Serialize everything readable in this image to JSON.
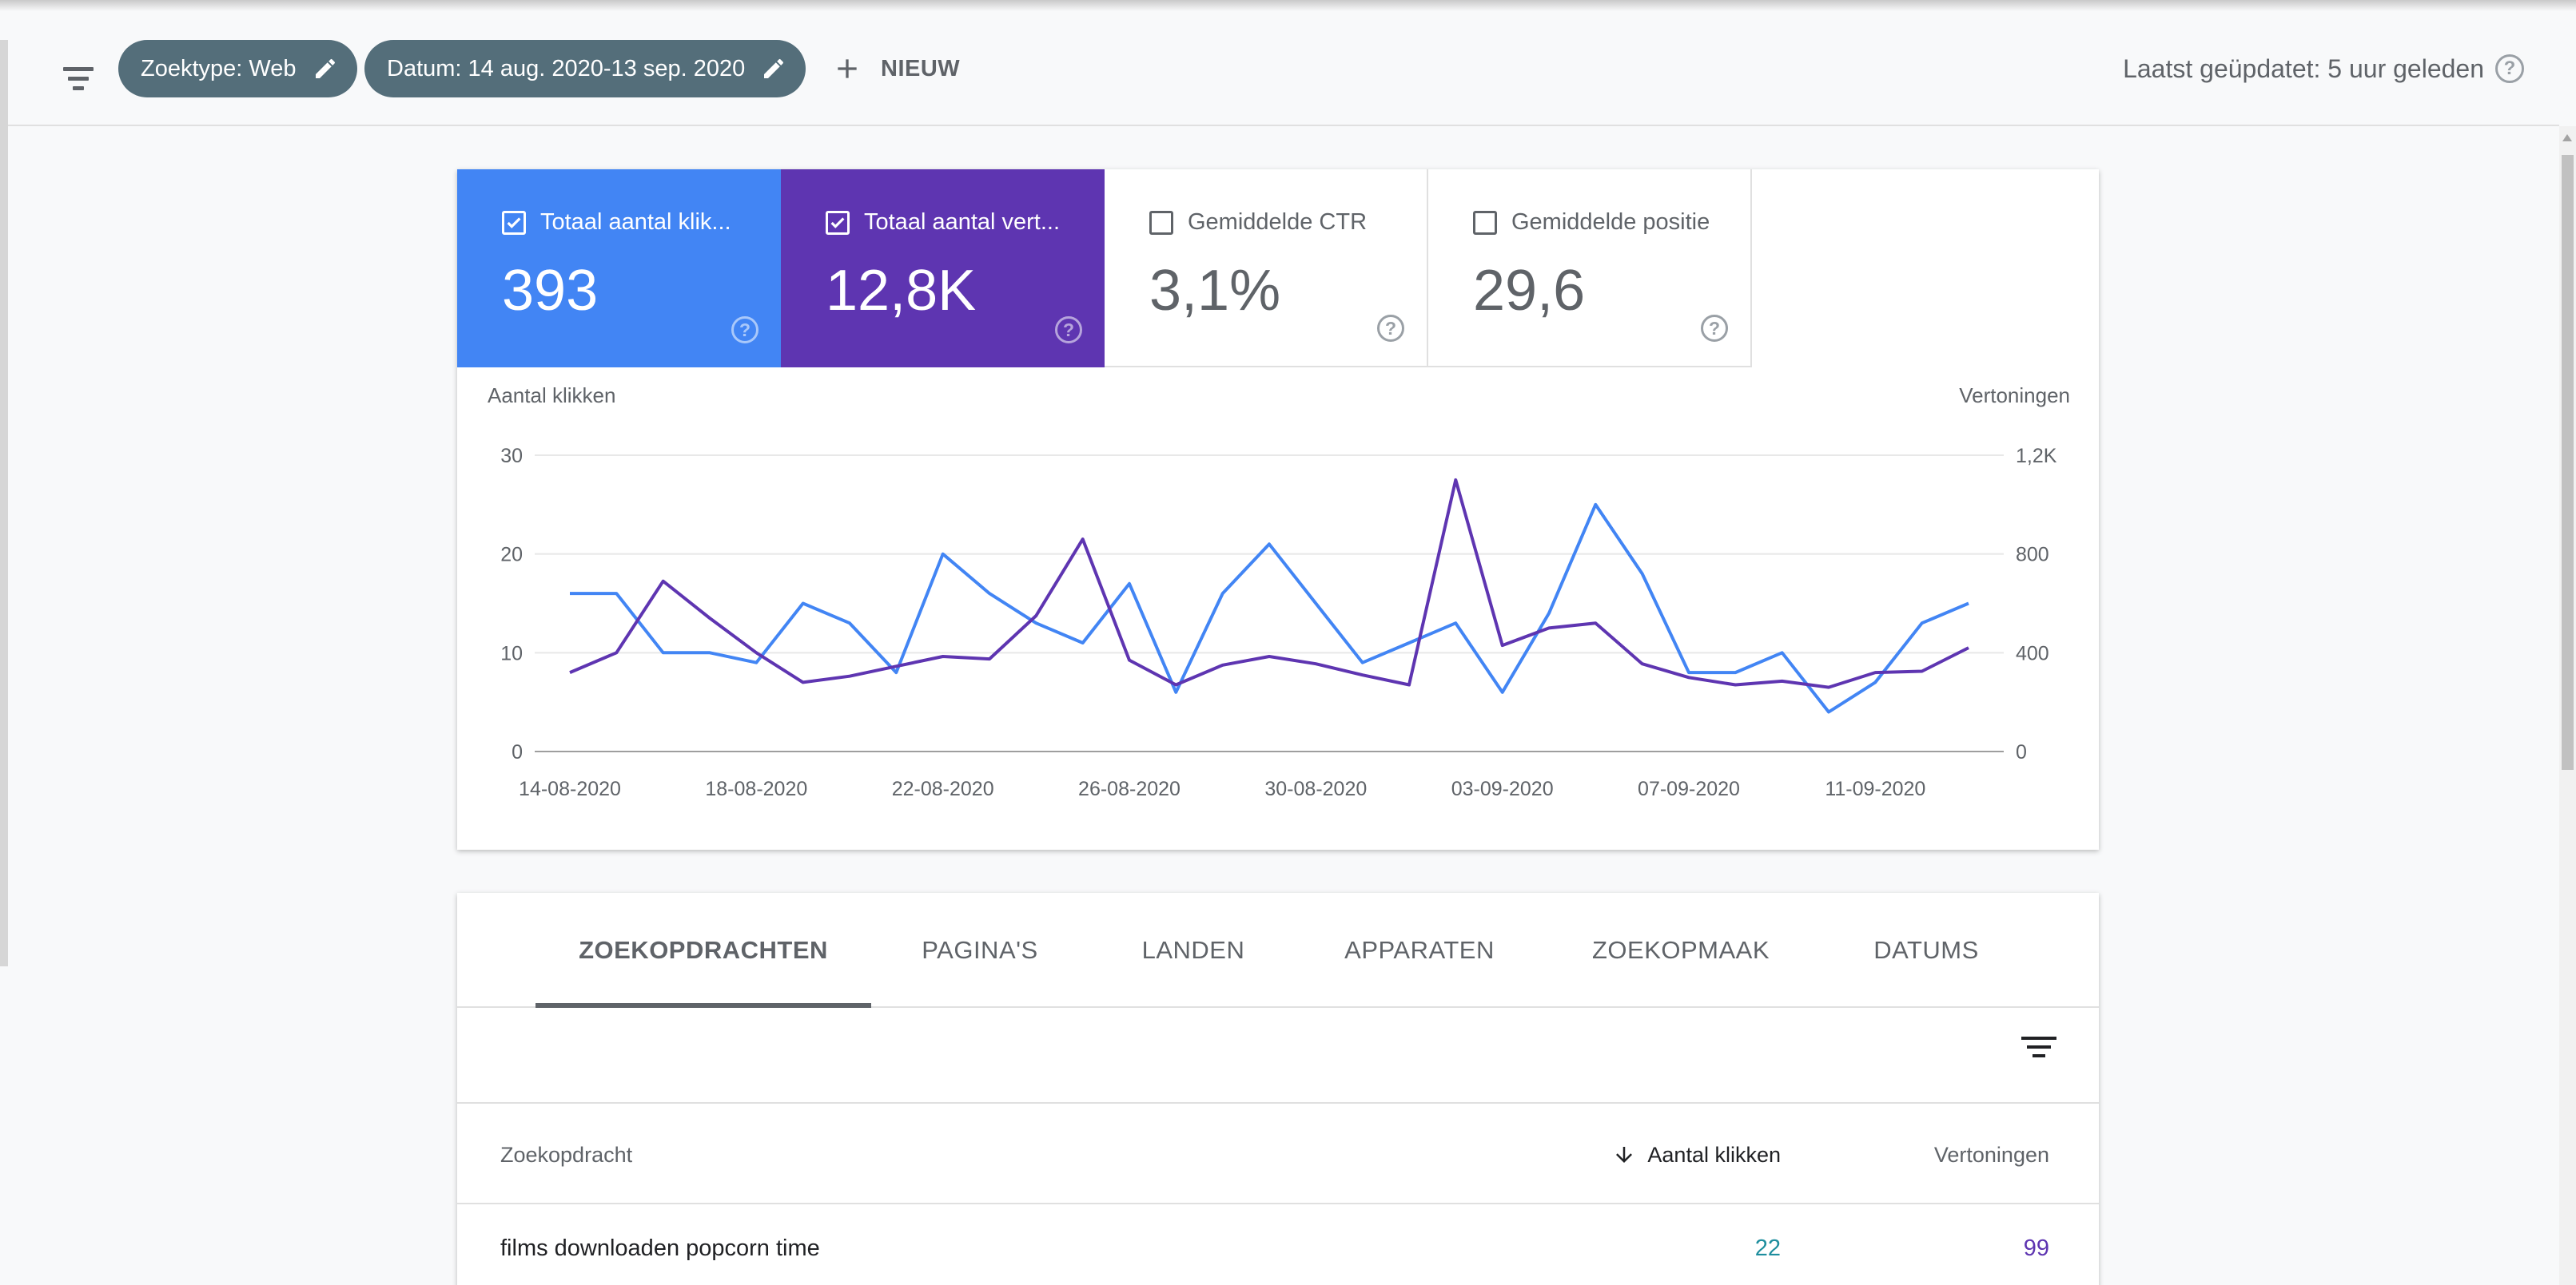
{
  "toolbar": {
    "chip_type": "Zoektype: Web",
    "chip_date": "Datum: 14 aug. 2020-13 sep. 2020",
    "new_label": "NIEUW",
    "updated": "Laatst geüpdatet: 5 uur geleden"
  },
  "metrics": [
    {
      "label": "Totaal aantal klik...",
      "value": "393",
      "checked": true,
      "color": "#4285f4"
    },
    {
      "label": "Totaal aantal vert...",
      "value": "12,8K",
      "checked": true,
      "color": "#5e35b1"
    },
    {
      "label": "Gemiddelde CTR",
      "value": "3,1%",
      "checked": false
    },
    {
      "label": "Gemiddelde positie",
      "value": "29,6",
      "checked": false
    }
  ],
  "chart_data": {
    "type": "line",
    "ylabel_left": "Aantal klikken",
    "ylabel_right": "Vertoningen",
    "yticks_left": [
      "0",
      "10",
      "20",
      "30"
    ],
    "yticks_right": [
      "0",
      "400",
      "800",
      "1,2K"
    ],
    "ylim_left": [
      0,
      30
    ],
    "ylim_right": [
      0,
      1200
    ],
    "xtick_labels": [
      "14-08-2020",
      "18-08-2020",
      "22-08-2020",
      "26-08-2020",
      "30-08-2020",
      "03-09-2020",
      "07-09-2020",
      "11-09-2020"
    ],
    "x": [
      "14-08-2020",
      "15-08-2020",
      "16-08-2020",
      "17-08-2020",
      "18-08-2020",
      "19-08-2020",
      "20-08-2020",
      "21-08-2020",
      "22-08-2020",
      "23-08-2020",
      "24-08-2020",
      "25-08-2020",
      "26-08-2020",
      "27-08-2020",
      "28-08-2020",
      "29-08-2020",
      "30-08-2020",
      "31-08-2020",
      "01-09-2020",
      "02-09-2020",
      "03-09-2020",
      "04-09-2020",
      "05-09-2020",
      "06-09-2020",
      "07-09-2020",
      "08-09-2020",
      "09-09-2020",
      "10-09-2020",
      "11-09-2020",
      "12-09-2020",
      "13-09-2020"
    ],
    "series": [
      {
        "name": "Totaal aantal klikken",
        "axis": "left",
        "color": "#4285f4",
        "values": [
          16,
          16,
          10,
          10,
          9,
          15,
          13,
          8,
          20,
          16,
          13,
          11,
          17,
          6,
          16,
          21,
          15,
          9,
          11,
          13,
          6,
          14,
          25,
          18,
          8,
          8,
          10,
          4,
          7,
          13,
          15
        ]
      },
      {
        "name": "Totaal aantal vertoningen",
        "axis": "right",
        "color": "#5e35b1",
        "values": [
          320,
          400,
          690,
          540,
          400,
          280,
          305,
          345,
          385,
          375,
          550,
          860,
          370,
          270,
          350,
          385,
          355,
          310,
          270,
          1100,
          430,
          500,
          520,
          355,
          300,
          270,
          285,
          260,
          320,
          325,
          420
        ]
      }
    ],
    "grid": true
  },
  "tabs": [
    "ZOEKOPDRACHTEN",
    "PAGINA'S",
    "LANDEN",
    "APPARATEN",
    "ZOEKOPMAAK",
    "DATUMS"
  ],
  "table": {
    "headers": {
      "query": "Zoekopdracht",
      "clicks": "Aantal klikken",
      "impressions": "Vertoningen"
    },
    "rows": [
      {
        "query": "films downloaden popcorn time",
        "clicks": "22",
        "impressions": "99"
      }
    ],
    "clicks_color": "#1e8e9e",
    "impressions_color": "#5e35b1"
  }
}
